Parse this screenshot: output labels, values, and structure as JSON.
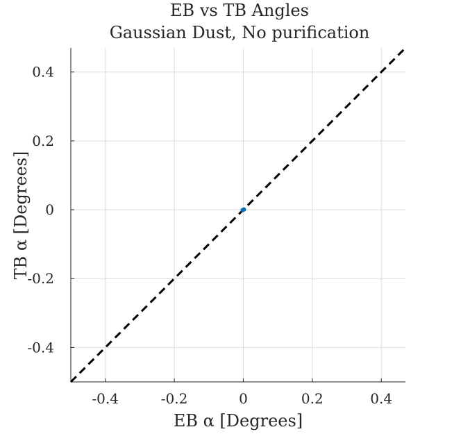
{
  "chart_data": {
    "type": "scatter",
    "title": "EB vs TB Angles",
    "subtitle": "Gaussian Dust, No purification",
    "xlabel": "EB α [Degrees]",
    "ylabel": "TB α [Degrees]",
    "xlim": [
      -0.5,
      0.47
    ],
    "ylim": [
      -0.5,
      0.47
    ],
    "x_ticks": [
      -0.4,
      -0.2,
      0,
      0.2,
      0.4
    ],
    "y_ticks": [
      -0.4,
      -0.2,
      0,
      0.2,
      0.4
    ],
    "x_tick_labels": [
      "-0.4",
      "-0.2",
      "0",
      "0.2",
      "0.4"
    ],
    "y_tick_labels": [
      "-0.4",
      "-0.2",
      "0",
      "0.2",
      "0.4"
    ],
    "grid": true,
    "series": [
      {
        "x": [
          0.0,
          0.002,
          -0.002,
          0.001
        ],
        "y": [
          0.0,
          0.001,
          -0.001,
          0.0
        ]
      }
    ],
    "reference_line": {
      "description": "y = x",
      "style": "dashed"
    },
    "colors": {
      "points": "#0072BD",
      "reference_line": "#000000"
    }
  }
}
